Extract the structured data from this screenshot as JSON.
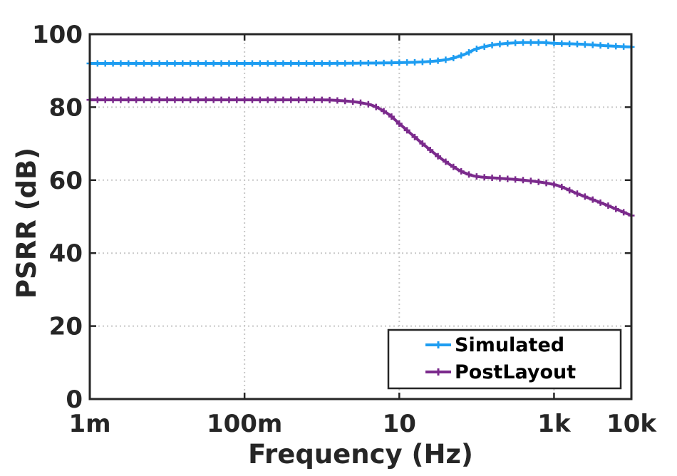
{
  "chart_data": {
    "type": "line",
    "title": "",
    "xlabel": "Frequency (Hz)",
    "ylabel": "PSRR (dB)",
    "x_scale": "log",
    "xlim": [
      0.001,
      10000
    ],
    "ylim": [
      0,
      100
    ],
    "x_ticks": [
      {
        "value": 0.001,
        "label": "1m"
      },
      {
        "value": 0.1,
        "label": "100m"
      },
      {
        "value": 10,
        "label": "10"
      },
      {
        "value": 1000,
        "label": "1k"
      },
      {
        "value": 10000,
        "label": "10k"
      }
    ],
    "y_ticks": [
      0,
      20,
      40,
      60,
      80,
      100
    ],
    "grid": true,
    "legend_position": "bottom-right",
    "series": [
      {
        "name": "Simulated",
        "color": "#1e9df1",
        "marker": "plus",
        "x": [
          0.001,
          0.01,
          0.1,
          1,
          5,
          10,
          20,
          40,
          70,
          100,
          200,
          400,
          700,
          1000,
          2000,
          5000,
          10000
        ],
        "y": [
          92.0,
          92.0,
          92.0,
          92.0,
          92.1,
          92.2,
          92.4,
          93.0,
          94.5,
          96.0,
          97.3,
          97.7,
          97.7,
          97.5,
          97.3,
          96.8,
          96.5
        ]
      },
      {
        "name": "PostLayout",
        "color": "#7b2a8c",
        "marker": "plus",
        "x": [
          0.001,
          0.01,
          0.1,
          1,
          2,
          4,
          7,
          10,
          20,
          40,
          70,
          100,
          200,
          400,
          1000,
          2000,
          5000,
          10000
        ],
        "y": [
          82.0,
          82.0,
          82.0,
          82.0,
          81.7,
          80.8,
          78.3,
          75.5,
          70.0,
          65.0,
          62.0,
          61.0,
          60.5,
          60.0,
          58.8,
          56.3,
          53.0,
          50.3
        ]
      }
    ]
  }
}
